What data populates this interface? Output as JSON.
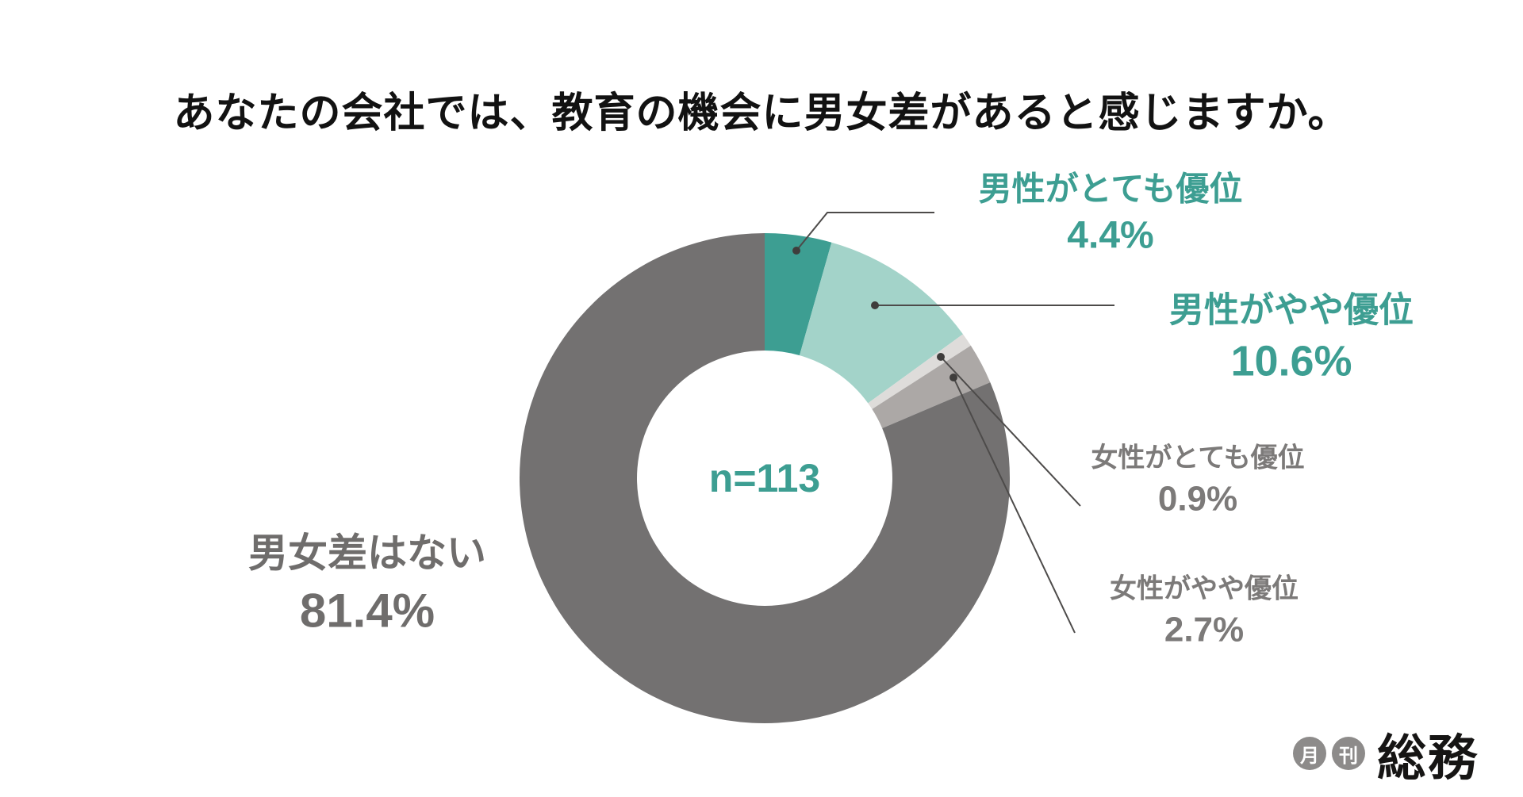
{
  "page": {
    "title": "あなたの会社では、教育の機会に男女差があると感じますか。",
    "center_label": "n=113",
    "background": "#ffffff",
    "accent_color": "#3d9e92"
  },
  "chart_data": {
    "type": "pie",
    "donut": true,
    "title": "あなたの会社では、教育の機会に男女差があると感じますか。",
    "sample_size_label": "n=113",
    "n": 113,
    "start_angle_deg": 0,
    "direction": "clockwise",
    "segments": [
      {
        "label": "男性がとても優位",
        "value": 4.4,
        "display": "4.4%",
        "color": "#3d9e92",
        "label_color": "#3d9e92"
      },
      {
        "label": "男性がやや優位",
        "value": 10.6,
        "display": "10.6%",
        "color": "#a3d3c9",
        "label_color": "#3d9e92"
      },
      {
        "label": "女性がとても優位",
        "value": 0.9,
        "display": "0.9%",
        "color": "#dedcda",
        "label_color": "#7c7a79"
      },
      {
        "label": "女性がやや優位",
        "value": 2.7,
        "display": "2.7%",
        "color": "#aca8a6",
        "label_color": "#7c7a79"
      },
      {
        "label": "男女差はない",
        "value": 81.4,
        "display": "81.4%",
        "color": "#737171",
        "label_color": "#6f6d6c"
      }
    ]
  },
  "logo": {
    "badge_month": "月",
    "badge_kan": "刊",
    "name": "総務"
  }
}
